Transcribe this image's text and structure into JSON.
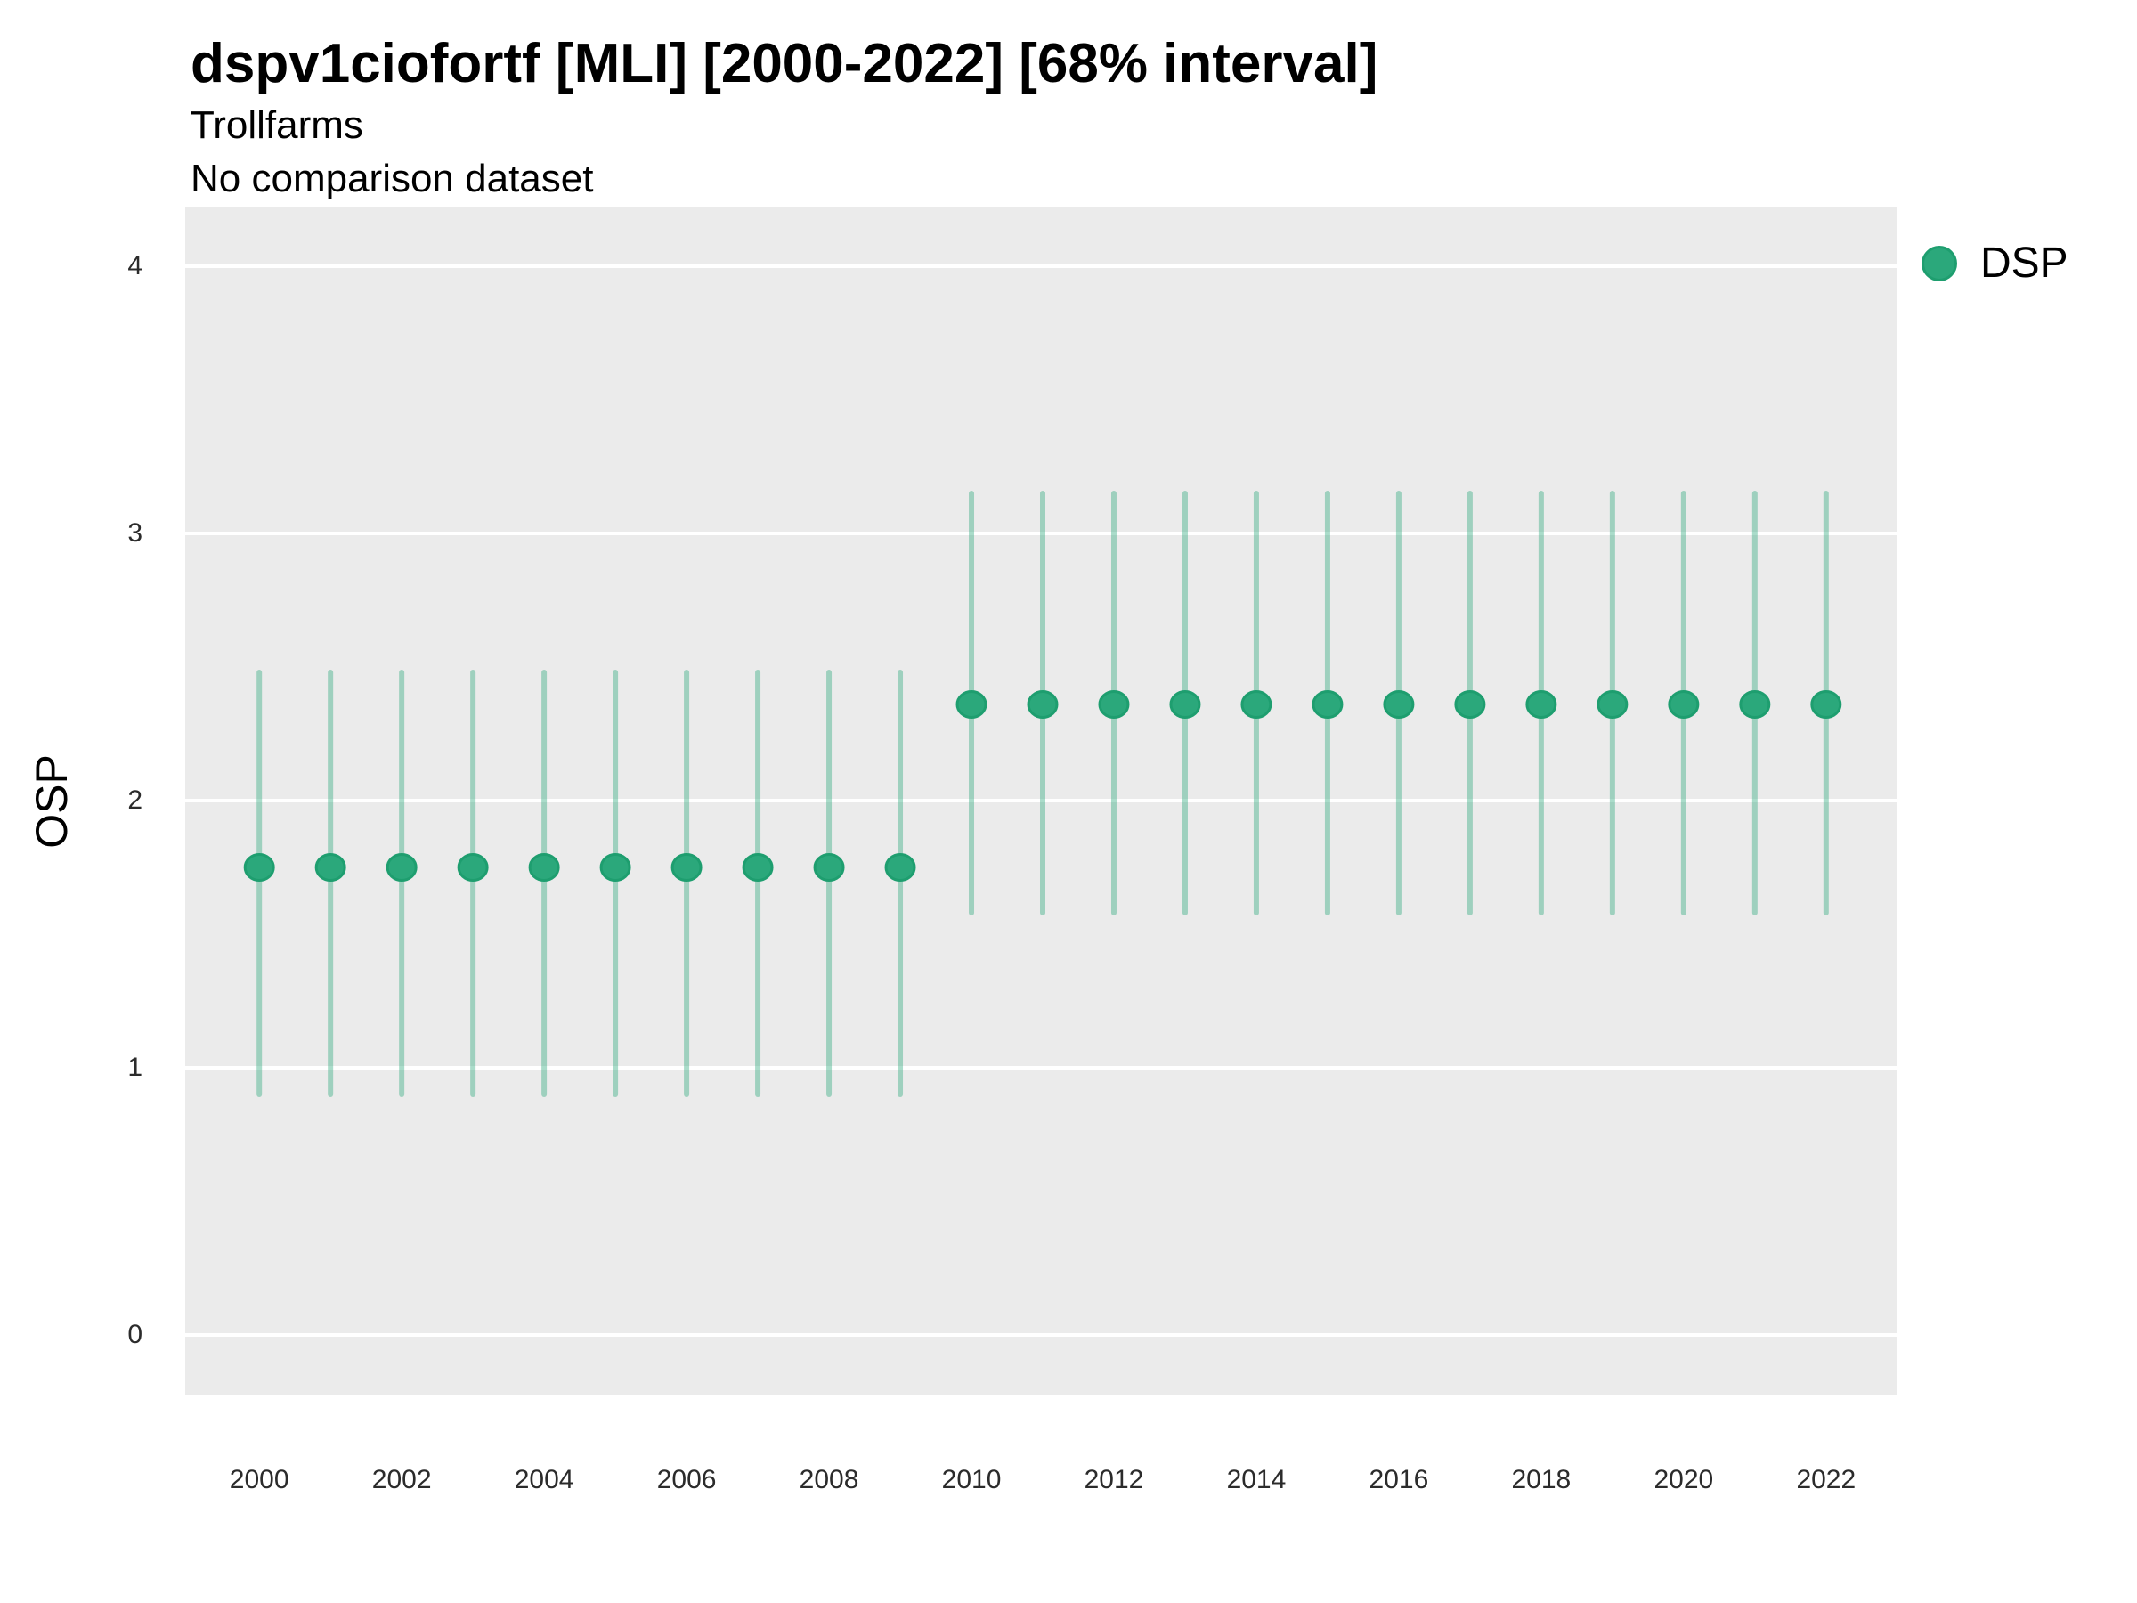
{
  "header": {
    "title": "dspv1ciofortf [MLI] [2000-2022] [68% interval]",
    "subtitle": "Trollfarms",
    "note": "No comparison dataset"
  },
  "legend": {
    "items": [
      {
        "label": "DSP",
        "color": "#2BA87B"
      }
    ],
    "position": "right"
  },
  "chart_data": {
    "type": "pointrange",
    "title": "dspv1ciofortf [MLI] [2000-2022] [68% interval]",
    "subtitle": "Trollfarms",
    "note": "No comparison dataset",
    "xlabel": "",
    "ylabel": "OSP",
    "legend_label": "DSP",
    "legend_position": "right",
    "grid": "horizontal-only",
    "x_ticks": [
      2000,
      2002,
      2004,
      2006,
      2008,
      2010,
      2012,
      2014,
      2016,
      2018,
      2020,
      2022
    ],
    "y_ticks": [
      0,
      1,
      2,
      3,
      4
    ],
    "xlim": [
      1998.96,
      2022.99
    ],
    "ylim": [
      -0.2233,
      4.2233
    ],
    "colors": {
      "point_fill": "#2BA87B",
      "point_stroke": "#1E9E6F",
      "interval_line": "#2BA87B",
      "interval_opacity": 0.4,
      "panel_bg": "#EBEBEB",
      "gridline": "#FFFFFF"
    },
    "series": [
      {
        "name": "DSP",
        "points": [
          {
            "x": 2000,
            "y": 1.75,
            "ymin": 0.9,
            "ymax": 2.48
          },
          {
            "x": 2001,
            "y": 1.75,
            "ymin": 0.9,
            "ymax": 2.48
          },
          {
            "x": 2002,
            "y": 1.75,
            "ymin": 0.9,
            "ymax": 2.48
          },
          {
            "x": 2003,
            "y": 1.75,
            "ymin": 0.9,
            "ymax": 2.48
          },
          {
            "x": 2004,
            "y": 1.75,
            "ymin": 0.9,
            "ymax": 2.48
          },
          {
            "x": 2005,
            "y": 1.75,
            "ymin": 0.9,
            "ymax": 2.48
          },
          {
            "x": 2006,
            "y": 1.75,
            "ymin": 0.9,
            "ymax": 2.48
          },
          {
            "x": 2007,
            "y": 1.75,
            "ymin": 0.9,
            "ymax": 2.48
          },
          {
            "x": 2008,
            "y": 1.75,
            "ymin": 0.9,
            "ymax": 2.48
          },
          {
            "x": 2009,
            "y": 1.75,
            "ymin": 0.9,
            "ymax": 2.48
          },
          {
            "x": 2010,
            "y": 2.36,
            "ymin": 1.58,
            "ymax": 3.15
          },
          {
            "x": 2011,
            "y": 2.36,
            "ymin": 1.58,
            "ymax": 3.15
          },
          {
            "x": 2012,
            "y": 2.36,
            "ymin": 1.58,
            "ymax": 3.15
          },
          {
            "x": 2013,
            "y": 2.36,
            "ymin": 1.58,
            "ymax": 3.15
          },
          {
            "x": 2014,
            "y": 2.36,
            "ymin": 1.58,
            "ymax": 3.15
          },
          {
            "x": 2015,
            "y": 2.36,
            "ymin": 1.58,
            "ymax": 3.15
          },
          {
            "x": 2016,
            "y": 2.36,
            "ymin": 1.58,
            "ymax": 3.15
          },
          {
            "x": 2017,
            "y": 2.36,
            "ymin": 1.58,
            "ymax": 3.15
          },
          {
            "x": 2018,
            "y": 2.36,
            "ymin": 1.58,
            "ymax": 3.15
          },
          {
            "x": 2019,
            "y": 2.36,
            "ymin": 1.58,
            "ymax": 3.15
          },
          {
            "x": 2020,
            "y": 2.36,
            "ymin": 1.58,
            "ymax": 3.15
          },
          {
            "x": 2021,
            "y": 2.36,
            "ymin": 1.58,
            "ymax": 3.15
          },
          {
            "x": 2022,
            "y": 2.36,
            "ymin": 1.58,
            "ymax": 3.15
          }
        ]
      }
    ]
  }
}
